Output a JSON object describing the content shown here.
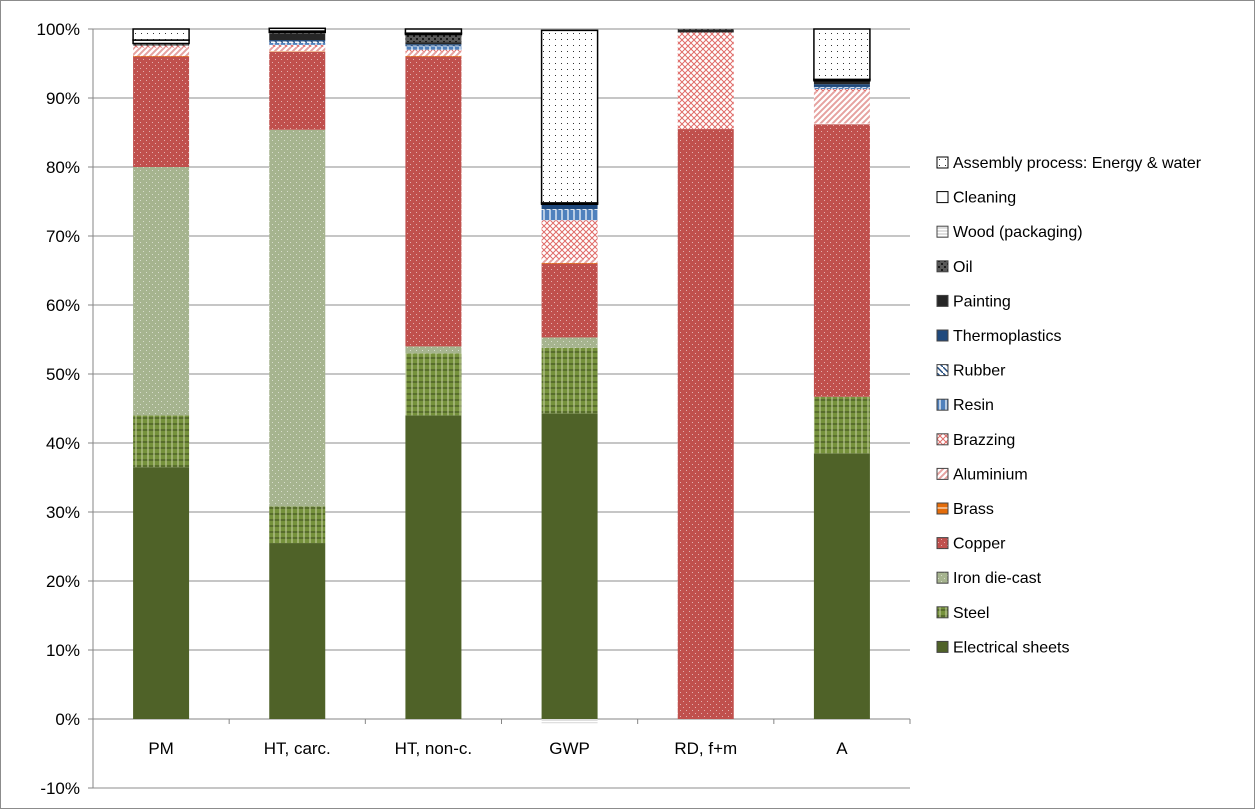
{
  "chart_data": {
    "type": "bar",
    "stacked": true,
    "percent": true,
    "title": "",
    "xlabel": "",
    "ylabel": "",
    "ylim": [
      -10,
      100
    ],
    "y_ticks": [
      "-10%",
      "0%",
      "10%",
      "20%",
      "30%",
      "40%",
      "50%",
      "60%",
      "70%",
      "80%",
      "90%",
      "100%"
    ],
    "grid": "horizontal",
    "legend_position": "right",
    "categories": [
      "PM",
      "HT, carc.",
      "HT, non-c.",
      "GWP",
      "RD, f+m",
      "A"
    ],
    "series": [
      {
        "name": "Electrical sheets",
        "color": "#4f6228",
        "pattern": "solid",
        "values": [
          36.5,
          25.5,
          44.0,
          44.3,
          0.0,
          38.5
        ]
      },
      {
        "name": "Steel",
        "color": "#76923c",
        "pattern": "grid",
        "values": [
          7.5,
          5.3,
          9.0,
          9.5,
          0.0,
          8.2
        ]
      },
      {
        "name": "Iron die-cast",
        "color": "#a6b48f",
        "pattern": "dots-light",
        "values": [
          36.0,
          54.6,
          1.0,
          1.5,
          0.0,
          0.0
        ]
      },
      {
        "name": "Copper",
        "color": "#c0504d",
        "pattern": "dots-light",
        "values": [
          16.0,
          11.3,
          42.0,
          10.7,
          85.5,
          39.5
        ]
      },
      {
        "name": "Brass",
        "color": "#e46c0a",
        "pattern": "hlines",
        "values": [
          0.1,
          0.1,
          0.1,
          0.1,
          0.0,
          0.1
        ]
      },
      {
        "name": "Aluminium",
        "color": "#e6a2a0",
        "pattern": "diag",
        "values": [
          1.2,
          0.6,
          0.6,
          0.5,
          0.0,
          4.7
        ]
      },
      {
        "name": "Brazzing",
        "color": "#f2b5b3",
        "pattern": "cross",
        "values": [
          0.3,
          0.3,
          0.3,
          5.7,
          14.0,
          0.3
        ]
      },
      {
        "name": "Resin",
        "color": "#4f81bd",
        "pattern": "vlines",
        "values": [
          0.0,
          0.3,
          0.5,
          1.5,
          0.0,
          0.2
        ]
      },
      {
        "name": "Rubber",
        "color": "#1f497d",
        "pattern": "diag-rev",
        "values": [
          0.0,
          0.2,
          0.1,
          0.1,
          0.0,
          0.1
        ]
      },
      {
        "name": "Thermoplastics",
        "color": "#1f497d",
        "pattern": "solid",
        "values": [
          0.0,
          0.2,
          0.2,
          0.6,
          0.0,
          0.4
        ]
      },
      {
        "name": "Painting",
        "color": "#262626",
        "pattern": "solid",
        "values": [
          0.0,
          0.9,
          0.3,
          0.1,
          0.4,
          0.5
        ]
      },
      {
        "name": "Oil",
        "color": "#595959",
        "pattern": "dots-dark",
        "values": [
          0.2,
          0.2,
          1.1,
          0.0,
          0.1,
          0.0
        ]
      },
      {
        "name": "Wood (packaging)",
        "color": "#bfbfbf",
        "pattern": "hlines-light",
        "values": [
          0.1,
          0.0,
          0.0,
          -0.6,
          0.0,
          0.0
        ]
      },
      {
        "name": "Cleaning",
        "color": "#ffffff",
        "pattern": "outline",
        "values": [
          0.5,
          0.2,
          0.2,
          0.2,
          0.0,
          0.2
        ]
      },
      {
        "name": "Assembly process: Energy & water",
        "color": "#ffffff",
        "pattern": "dots-sparse",
        "values": [
          1.6,
          0.4,
          0.6,
          25.0,
          0.0,
          7.3
        ]
      }
    ],
    "legend_order": [
      "Assembly process: Energy & water",
      "Cleaning",
      "Wood (packaging)",
      "Oil",
      "Painting",
      "Thermoplastics",
      "Rubber",
      "Resin",
      "Brazzing",
      "Aluminium",
      "Brass",
      "Copper",
      "Iron die-cast",
      "Steel",
      "Electrical sheets"
    ]
  }
}
